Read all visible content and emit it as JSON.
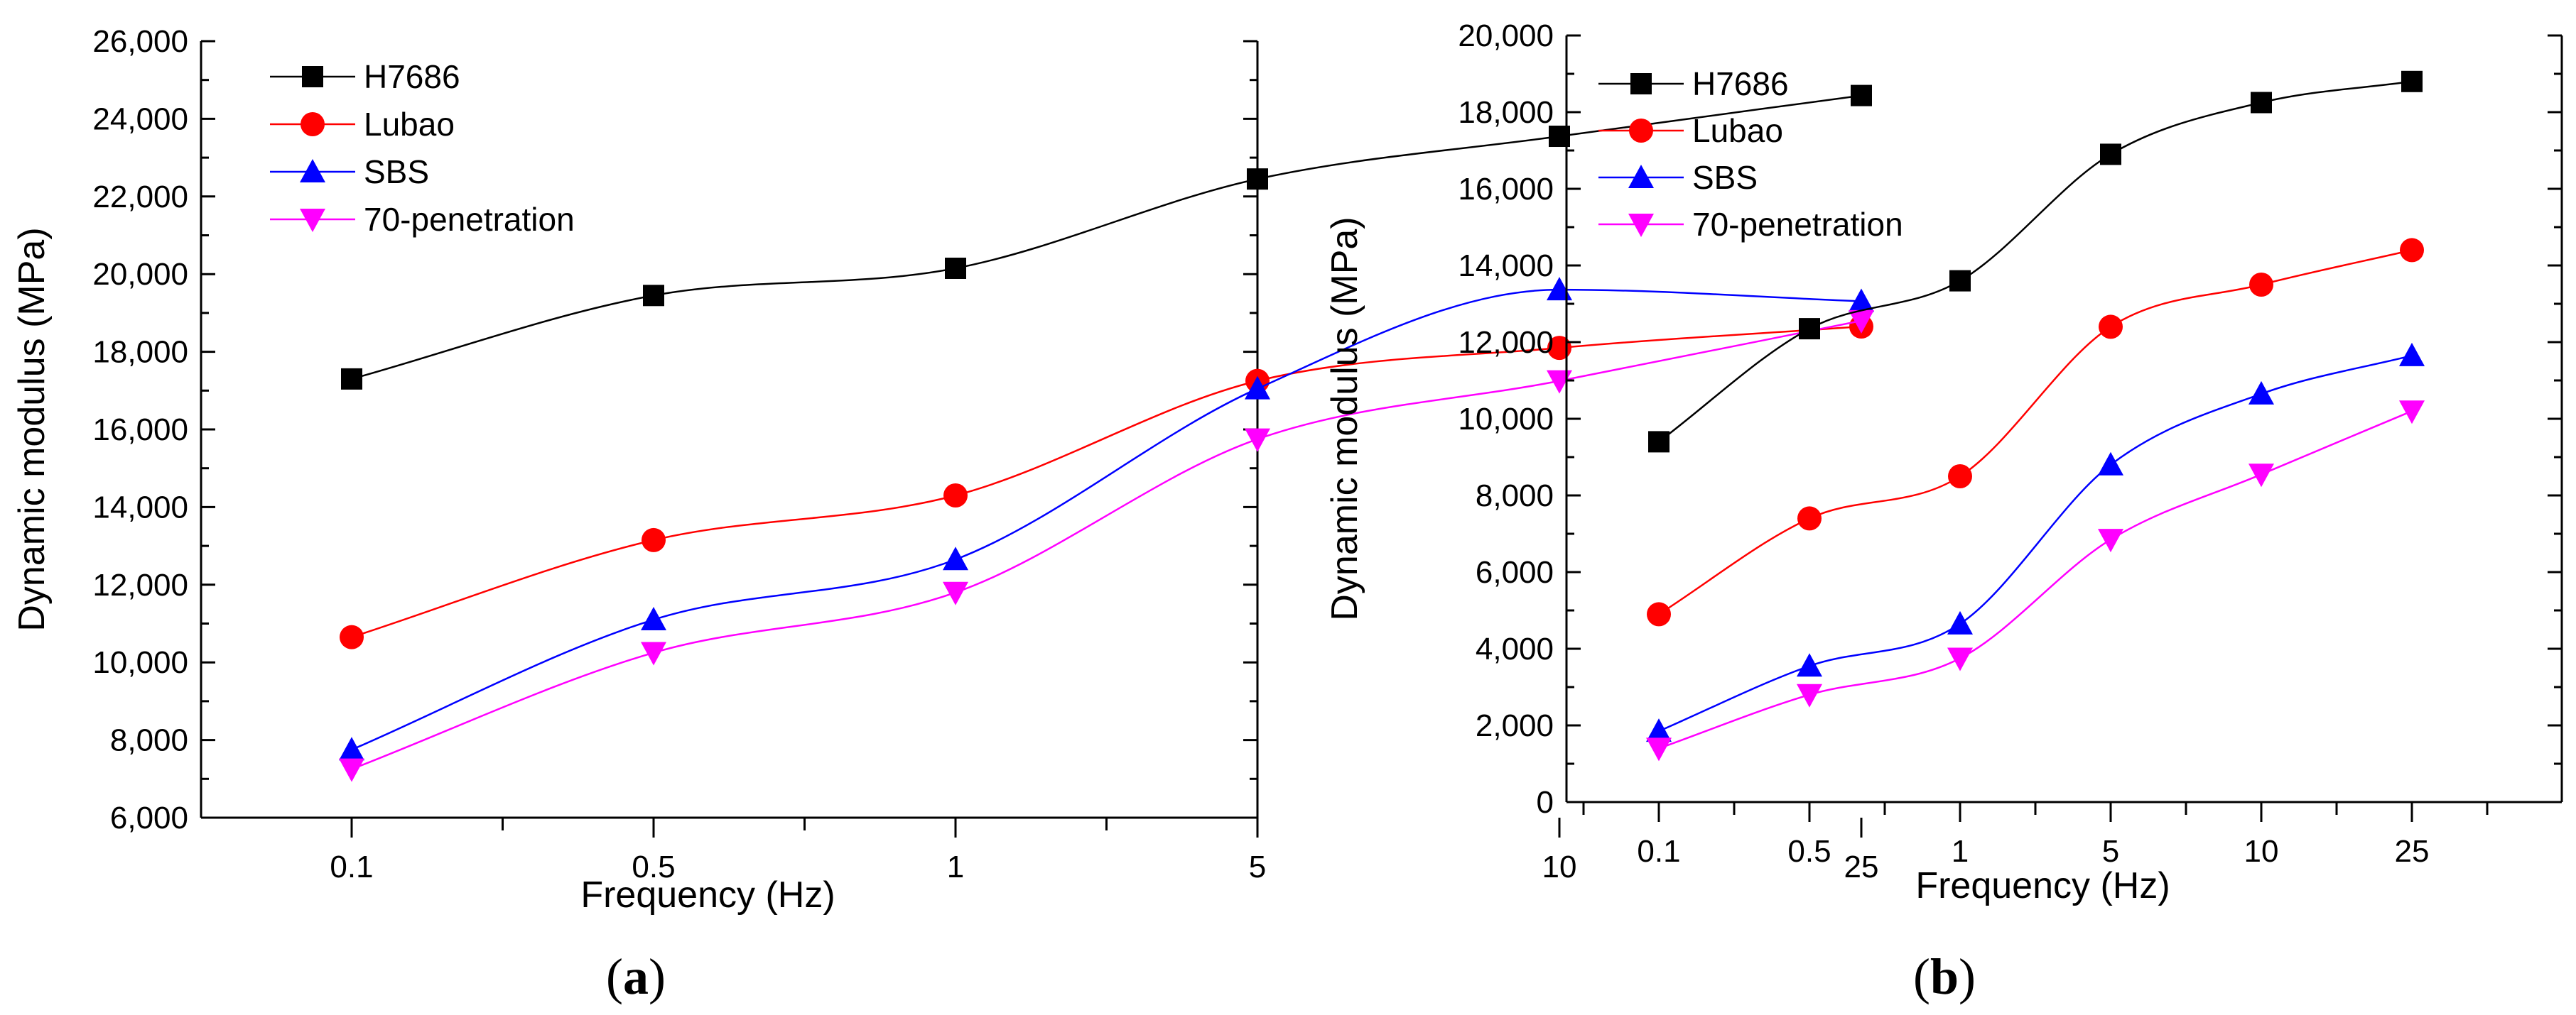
{
  "chart_data": [
    {
      "type": "line",
      "panel_label": {
        "open": "(",
        "letter": "a",
        "close": ")"
      },
      "xlabel": "Frequency (Hz)",
      "ylabel": "Dynamic modulus (MPa)",
      "categories": [
        "0.1",
        "0.5",
        "1",
        "5",
        "10",
        "25"
      ],
      "ylim": [
        6000,
        26000
      ],
      "yticks": [
        6000,
        8000,
        10000,
        12000,
        14000,
        16000,
        18000,
        20000,
        22000,
        24000,
        26000
      ],
      "ytick_labels": [
        "6,000",
        "8,000",
        "10,000",
        "12,000",
        "14,000",
        "16,000",
        "18,000",
        "20,000",
        "22,000",
        "24,000",
        "26,000"
      ],
      "legend_position": "top-left",
      "series": [
        {
          "name": "H7686",
          "marker": "square",
          "color": "#000000",
          "values": [
            17300,
            19450,
            20150,
            22450,
            23550,
            24600
          ]
        },
        {
          "name": "Lubao",
          "marker": "circle",
          "color": "#ff0000",
          "values": [
            10650,
            13150,
            14300,
            17250,
            18100,
            18650
          ]
        },
        {
          "name": "SBS",
          "marker": "triangle-up",
          "color": "#0000ff",
          "values": [
            7750,
            11100,
            12650,
            17050,
            19600,
            19300
          ]
        },
        {
          "name": "70-penetration",
          "marker": "triangle-down",
          "color": "#ff00ff",
          "values": [
            7250,
            10250,
            11800,
            15750,
            17250,
            18800
          ]
        }
      ]
    },
    {
      "type": "line",
      "panel_label": {
        "open": "(",
        "letter": "b",
        "close": ")"
      },
      "xlabel": "Frequency (Hz)",
      "ylabel": "Dynamic modulus (MPa)",
      "categories": [
        "0.1",
        "0.5",
        "1",
        "5",
        "10",
        "25"
      ],
      "ylim": [
        0,
        20000
      ],
      "yticks": [
        0,
        2000,
        4000,
        6000,
        8000,
        10000,
        12000,
        14000,
        16000,
        18000,
        20000
      ],
      "ytick_labels": [
        "0",
        "2,000",
        "4,000",
        "6,000",
        "8,000",
        "10,000",
        "12,000",
        "14,000",
        "16,000",
        "18,000",
        "20,000"
      ],
      "legend_position": "top-left",
      "series": [
        {
          "name": "H7686",
          "marker": "square",
          "color": "#000000",
          "values": [
            9400,
            12350,
            13600,
            16900,
            18250,
            18800
          ]
        },
        {
          "name": "Lubao",
          "marker": "circle",
          "color": "#ff0000",
          "values": [
            4900,
            7400,
            8500,
            12400,
            13500,
            14400
          ]
        },
        {
          "name": "SBS",
          "marker": "triangle-up",
          "color": "#0000ff",
          "values": [
            1850,
            3550,
            4650,
            8800,
            10650,
            11650
          ]
        },
        {
          "name": "70-penetration",
          "marker": "triangle-down",
          "color": "#ff00ff",
          "values": [
            1400,
            2800,
            3750,
            6850,
            8550,
            10200
          ]
        }
      ]
    }
  ]
}
